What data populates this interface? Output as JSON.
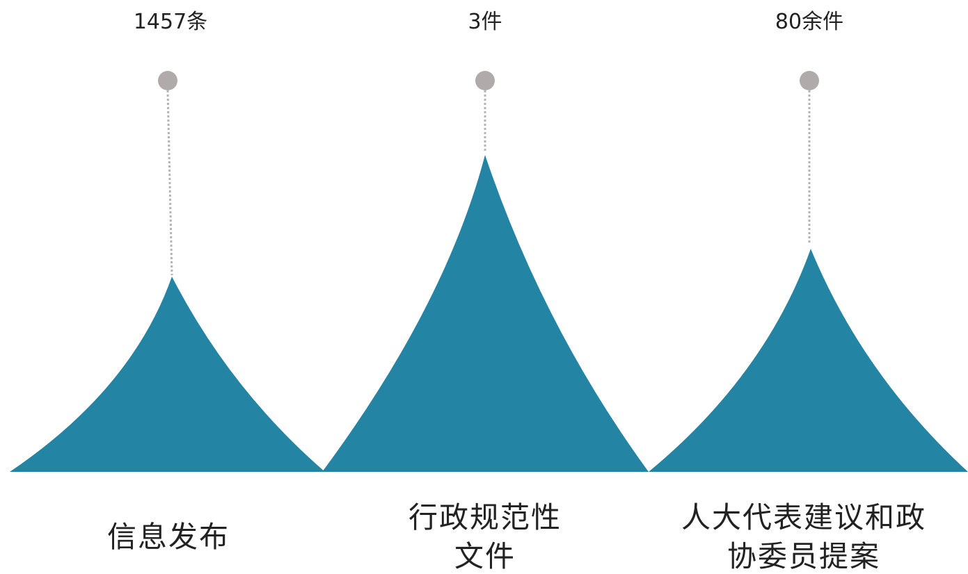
{
  "colors": {
    "peak_fill": "#2484a3",
    "marker": "#b0aaaa",
    "connector": "#b8b3b3",
    "text": "#222222"
  },
  "items": [
    {
      "value_label": "1457条",
      "category_lines": [
        "信息发布"
      ]
    },
    {
      "value_label": "3件",
      "category_lines": [
        "行政规范性",
        "文件"
      ]
    },
    {
      "value_label": "80余件",
      "category_lines": [
        "人大代表建议和政",
        "协委员提案"
      ]
    }
  ]
}
